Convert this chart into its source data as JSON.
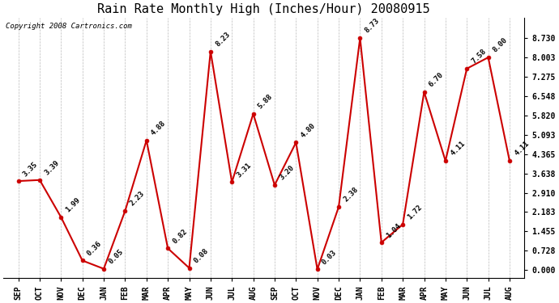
{
  "title": "Rain Rate Monthly High (Inches/Hour) 20080915",
  "copyright": "Copyright 2008 Cartronics.com",
  "months": [
    "SEP",
    "OCT",
    "NOV",
    "DEC",
    "JAN",
    "FEB",
    "MAR",
    "APR",
    "MAY",
    "JUN",
    "JUL",
    "AUG",
    "SEP",
    "OCT",
    "NOV",
    "DEC",
    "JAN",
    "FEB",
    "MAR",
    "APR",
    "MAY",
    "JUN",
    "JUL",
    "AUG"
  ],
  "values": [
    3.35,
    3.39,
    1.99,
    0.36,
    0.05,
    2.23,
    4.88,
    0.82,
    0.08,
    8.23,
    3.31,
    5.88,
    3.2,
    4.8,
    0.03,
    2.38,
    8.73,
    1.04,
    1.72,
    6.7,
    4.11,
    7.58,
    8.0,
    4.11
  ],
  "yticks": [
    0.0,
    0.728,
    1.455,
    2.183,
    2.91,
    3.638,
    4.365,
    5.093,
    5.82,
    6.548,
    7.275,
    8.003,
    8.73
  ],
  "line_color": "#cc0000",
  "marker_color": "#cc0000",
  "bg_color": "white",
  "grid_color": "#bbbbbb",
  "title_fontsize": 11,
  "label_fontsize": 6.5,
  "tick_fontsize": 7,
  "copyright_fontsize": 6.5,
  "ylim_min": -0.3,
  "ylim_max": 9.5
}
